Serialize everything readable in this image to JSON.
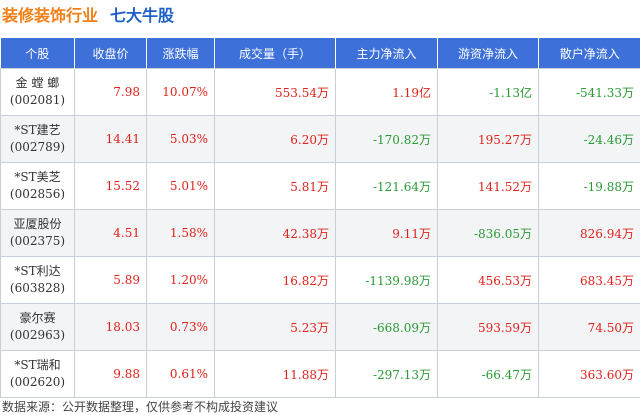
{
  "header": {
    "title_a": "装修装饰行业",
    "title_b": "七大牛股"
  },
  "table": {
    "headers": [
      "个股",
      "收盘价",
      "涨跌幅",
      "成交量（手）",
      "主力净流入",
      "游资净流入",
      "散户净流入"
    ],
    "rows": [
      [
        "金 螳 螂",
        "(002081)",
        "7.98",
        "10.07%",
        "553.54万",
        "1.19亿",
        "-1.13亿",
        "-541.33万"
      ],
      [
        "*ST建艺",
        "(002789)",
        "14.41",
        "5.03%",
        "6.20万",
        "-170.82万",
        "195.27万",
        "-24.46万"
      ],
      [
        "*ST美芝",
        "(002856)",
        "15.52",
        "5.01%",
        "5.81万",
        "-121.64万",
        "141.52万",
        "-19.88万"
      ],
      [
        "亚厦股份",
        "(002375)",
        "4.51",
        "1.58%",
        "42.38万",
        "9.11万",
        "-836.05万",
        "826.94万"
      ],
      [
        "*ST利达",
        "(603828)",
        "5.89",
        "1.20%",
        "16.82万",
        "-1139.98万",
        "456.53万",
        "683.45万"
      ],
      [
        "豪尔赛",
        "(002963)",
        "18.03",
        "0.73%",
        "5.23万",
        "-668.09万",
        "593.59万",
        "74.50万"
      ],
      [
        "*ST瑞和",
        "(002620)",
        "9.88",
        "0.61%",
        "11.88万",
        "-297.13万",
        "-66.47万",
        "363.60万"
      ]
    ]
  },
  "footer": {
    "source": "数据来源：公开数据整理，仅供参考不构成投资建议"
  }
}
